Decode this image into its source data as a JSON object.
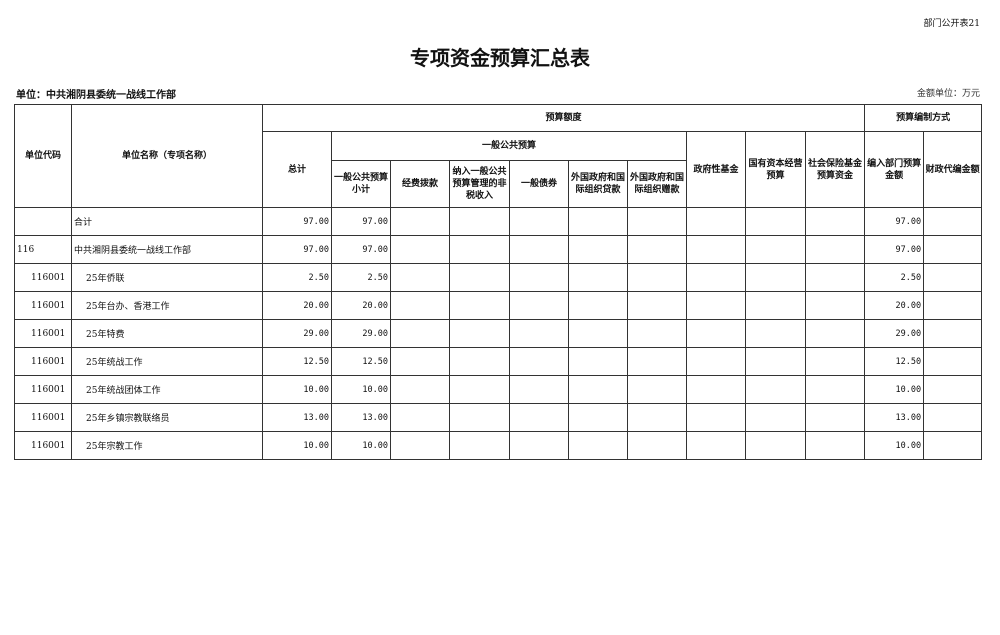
{
  "corner_label": "部门公开表21",
  "title": "专项资金预算汇总表",
  "unit_label": "单位：中共湘阴县委统一战线工作部",
  "money_unit": "金额单位：万元",
  "headers": {
    "code": "单位代码",
    "name": "单位名称（专项名称）",
    "budget_amount": "预算额度",
    "total": "总计",
    "general_public": "一般公共预算",
    "subtotal": "一般公共预算小计",
    "appropriation": "经费拨款",
    "nontax": "纳入一般公共预算管理的非税收入",
    "bonds": "一般债券",
    "foreign_loans": "外国政府和国际组织贷款",
    "foreign_grants": "外国政府和国际组织赠款",
    "gov_fund": "政府性基金",
    "state_capital": "国有资本经营预算",
    "social_insurance": "社会保险基金预算资金",
    "method": "预算编制方式",
    "dept_budget": "编入部门预算金额",
    "fiscal_proxy": "财政代编金额"
  },
  "rows": [
    {
      "code": "",
      "name": "合计",
      "total": "97.00",
      "subtotal": "97.00",
      "dept_budget": "97.00"
    },
    {
      "code": "116",
      "name": "中共湘阴县委统一战线工作部",
      "total": "97.00",
      "subtotal": "97.00",
      "dept_budget": "97.00"
    },
    {
      "code": "116001",
      "name": "25年侨联",
      "total": "2.50",
      "subtotal": "2.50",
      "dept_budget": "2.50"
    },
    {
      "code": "116001",
      "name": "25年台办、香港工作",
      "total": "20.00",
      "subtotal": "20.00",
      "dept_budget": "20.00"
    },
    {
      "code": "116001",
      "name": "25年特费",
      "total": "29.00",
      "subtotal": "29.00",
      "dept_budget": "29.00"
    },
    {
      "code": "116001",
      "name": "25年统战工作",
      "total": "12.50",
      "subtotal": "12.50",
      "dept_budget": "12.50"
    },
    {
      "code": "116001",
      "name": "25年统战团体工作",
      "total": "10.00",
      "subtotal": "10.00",
      "dept_budget": "10.00"
    },
    {
      "code": "116001",
      "name": "25年乡镇宗教联络员",
      "total": "13.00",
      "subtotal": "13.00",
      "dept_budget": "13.00"
    },
    {
      "code": "116001",
      "name": "25年宗教工作",
      "total": "10.00",
      "subtotal": "10.00",
      "dept_budget": "10.00"
    }
  ]
}
